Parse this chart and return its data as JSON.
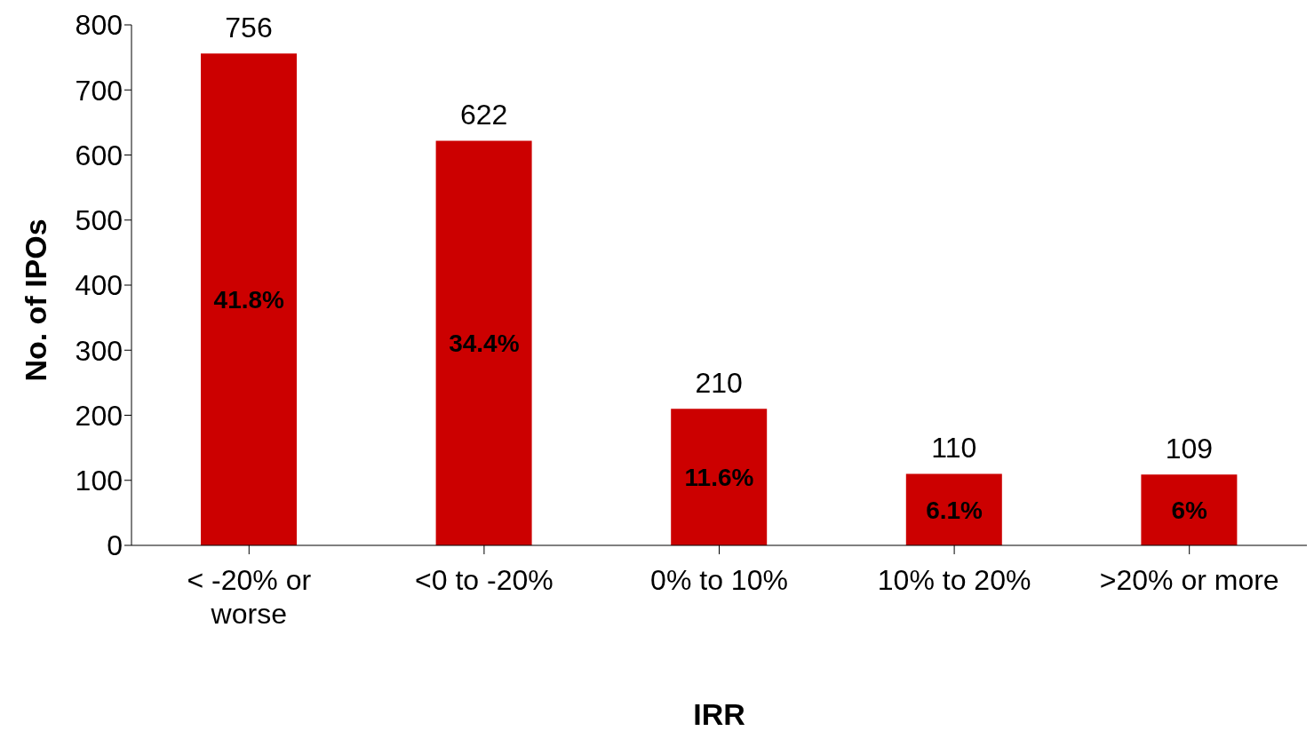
{
  "chart_data": {
    "type": "bar",
    "xlabel": "IRR",
    "ylabel": "No. of IPOs",
    "categories": [
      "< -20% or worse",
      "<0 to -20%",
      "0% to 10%",
      "10% to 20%",
      ">20% or more"
    ],
    "values": [
      756,
      622,
      210,
      110,
      109
    ],
    "color": "#cc0000",
    "data_labels": true,
    "ylim": [
      0,
      800
    ],
    "yticks": [
      0,
      100,
      200,
      300,
      400,
      500,
      600,
      700,
      800
    ],
    "grid": false,
    "legend": false,
    "annotations": [
      "41.8%",
      "34.4%",
      "11.6%",
      "6.1%",
      "6%"
    ]
  }
}
